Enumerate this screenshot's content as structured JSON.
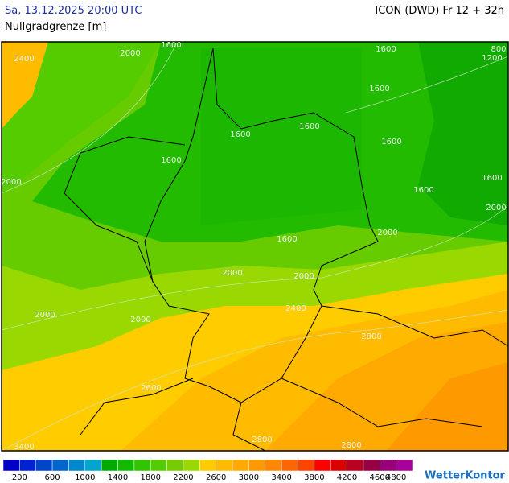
{
  "header": {
    "date": "Sa, 13.12.2025 20:00 UTC",
    "model": "ICON (DWD) Fr 12 + 32h",
    "variable": "Nullgradgrenze [m]"
  },
  "contour_labels": [
    "2400",
    "2000",
    "1600",
    "1600",
    "800",
    "1200",
    "1600",
    "1600",
    "1600",
    "1600",
    "1600",
    "2000",
    "1600",
    "1600",
    "2000",
    "1600",
    "2000",
    "2000",
    "2000",
    "2000",
    "2000",
    "2400",
    "2800",
    "2600",
    "3400",
    "2800",
    "2800"
  ],
  "legend": {
    "colors": [
      "#0000c8",
      "#0022d4",
      "#0044cc",
      "#0066cc",
      "#0088cc",
      "#00a6cc",
      "#00aa00",
      "#11bb00",
      "#33c400",
      "#55cc00",
      "#77cc00",
      "#99d800",
      "#ffcc00",
      "#ffbb00",
      "#ffaa00",
      "#ff9900",
      "#ff8800",
      "#ff6600",
      "#ff4400",
      "#ff0000",
      "#dd0000",
      "#bb0022",
      "#990044",
      "#990077",
      "#aa0099"
    ],
    "labels": [
      200,
      600,
      1000,
      1400,
      1800,
      2200,
      2600,
      3000,
      3400,
      3800,
      4200,
      4600,
      4800
    ]
  },
  "logo": "WetterKontor"
}
